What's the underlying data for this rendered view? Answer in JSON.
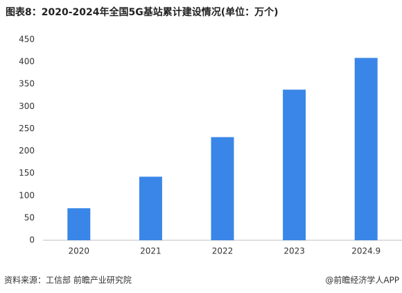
{
  "chart_data": {
    "type": "bar",
    "title": "图表8：2020-2024年全国5G基站累计建设情况(单位：万个)",
    "categories": [
      "2020",
      "2021",
      "2022",
      "2023",
      "2024.9"
    ],
    "values": [
      71.8,
      142.5,
      231.2,
      337.7,
      408.9
    ],
    "color": "#3a86e8",
    "ylim": [
      0,
      450
    ],
    "yticks": [
      0,
      50,
      100,
      150,
      200,
      250,
      300,
      350,
      400,
      450
    ],
    "grid": false,
    "source": "资料来源：工信部 前瞻产业研究院",
    "credit": "@前瞻经济学人APP"
  }
}
